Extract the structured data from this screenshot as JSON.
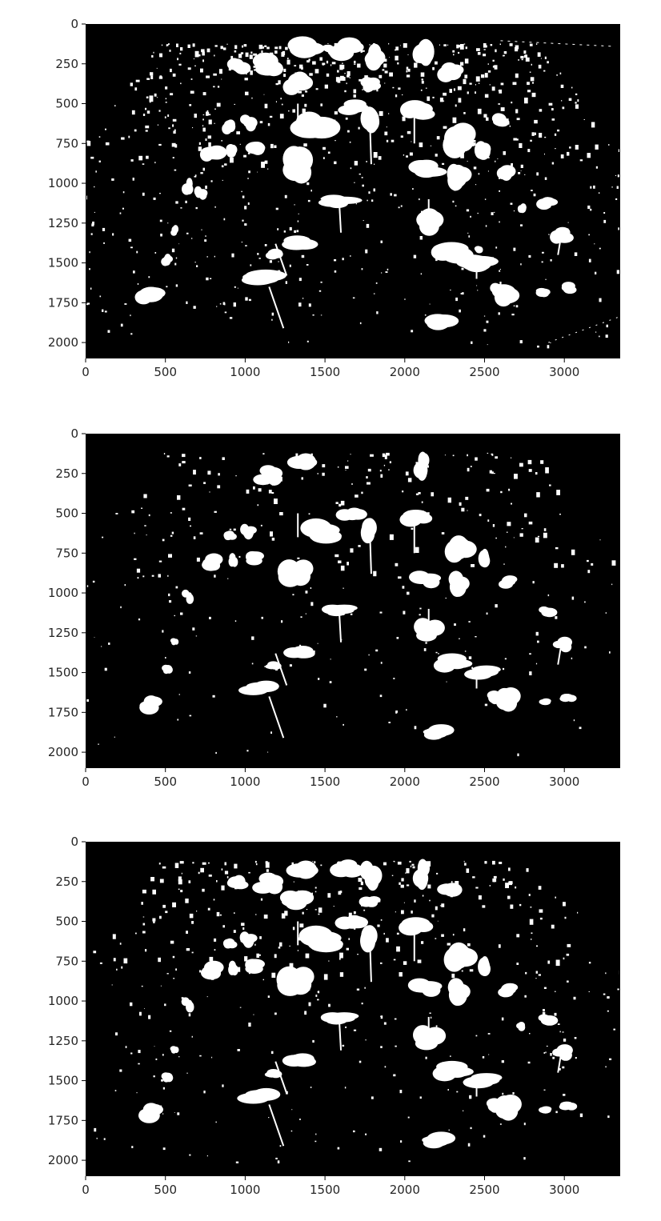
{
  "figure": {
    "background": "#ffffff",
    "image_background": "#000000",
    "mask_color": "#ffffff",
    "panel_count": 3
  },
  "chart_data": [
    {
      "type": "image",
      "title": "",
      "xlabel": "",
      "ylabel": "",
      "xlim": [
        0,
        3350
      ],
      "ylim": [
        2100,
        0
      ],
      "xticks": [
        0,
        500,
        1000,
        1500,
        2000,
        2500,
        3000
      ],
      "xtick_labels": [
        "0",
        "500",
        "1000",
        "1500",
        "2000",
        "2500",
        "3000"
      ],
      "yticks": [
        0,
        250,
        500,
        750,
        1000,
        1250,
        1500,
        1750,
        2000
      ],
      "ytick_labels": [
        "0",
        "250",
        "500",
        "750",
        "1000",
        "1250",
        "1500",
        "1750",
        "2000"
      ],
      "grid": false,
      "content": "binary-mask"
    },
    {
      "type": "image",
      "title": "",
      "xlabel": "",
      "ylabel": "",
      "xlim": [
        0,
        3350
      ],
      "ylim": [
        2100,
        0
      ],
      "xticks": [
        0,
        500,
        1000,
        1500,
        2000,
        2500,
        3000
      ],
      "xtick_labels": [
        "0",
        "500",
        "1000",
        "1500",
        "2000",
        "2500",
        "3000"
      ],
      "yticks": [
        0,
        250,
        500,
        750,
        1000,
        1250,
        1500,
        1750,
        2000
      ],
      "ytick_labels": [
        "0",
        "250",
        "500",
        "750",
        "1000",
        "1250",
        "1500",
        "1750",
        "2000"
      ],
      "grid": false,
      "content": "binary-mask"
    },
    {
      "type": "image",
      "title": "",
      "xlabel": "",
      "ylabel": "",
      "xlim": [
        0,
        3350
      ],
      "ylim": [
        2100,
        0
      ],
      "xticks": [
        0,
        500,
        1000,
        1500,
        2000,
        2500,
        3000
      ],
      "xtick_labels": [
        "0",
        "500",
        "1000",
        "1500",
        "2000",
        "2500",
        "3000"
      ],
      "yticks": [
        0,
        250,
        500,
        750,
        1000,
        1250,
        1500,
        1750,
        2000
      ],
      "ytick_labels": [
        "0",
        "250",
        "500",
        "750",
        "1000",
        "1250",
        "1500",
        "1750",
        "2000"
      ],
      "grid": false,
      "content": "binary-mask"
    }
  ]
}
